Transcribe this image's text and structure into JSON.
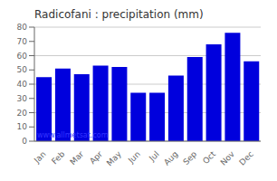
{
  "chart_data": {
    "type": "bar",
    "title": "Radicofani : precipitation (mm)",
    "categories": [
      "Jan",
      "Feb",
      "Mar",
      "Apr",
      "May",
      "Jun",
      "Jul",
      "Aug",
      "Sep",
      "Oct",
      "Nov",
      "Dec"
    ],
    "values": [
      45,
      51,
      47,
      53,
      52,
      34,
      34,
      46,
      59,
      68,
      76,
      56
    ],
    "color": "#0000dd",
    "ylim": [
      0,
      80
    ],
    "yticks": [
      0,
      10,
      20,
      30,
      40,
      50,
      60,
      70,
      80
    ],
    "grid": true,
    "annotations": [
      {
        "text": "www.allmetsat.com",
        "color": "#3333ff"
      }
    ]
  }
}
